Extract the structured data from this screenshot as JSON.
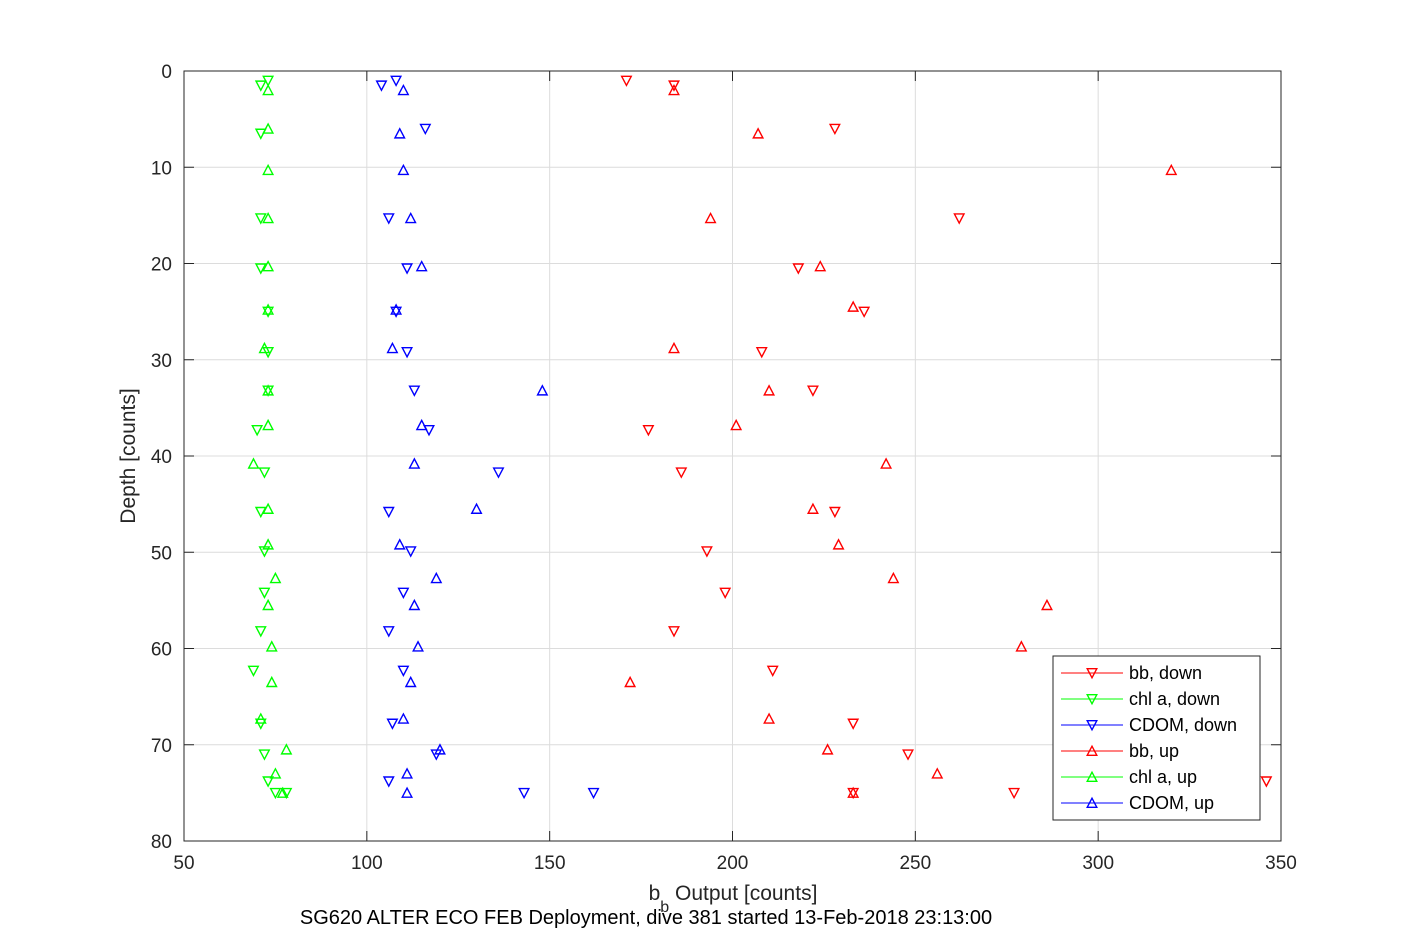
{
  "chart_data": {
    "type": "scatter",
    "title": "",
    "caption": "SG620 ALTER ECO FEB Deployment, dive 381 started 13-Feb-2018 23:13:00",
    "xlabel_main": "b",
    "xlabel_sub": "b",
    "xlabel_rest": " Output [counts]",
    "ylabel": "Depth [counts]",
    "xlim": [
      50,
      350
    ],
    "ylim": [
      0,
      80
    ],
    "y_reversed": true,
    "xticks": [
      50,
      100,
      150,
      200,
      250,
      300,
      350
    ],
    "yticks": [
      0,
      10,
      20,
      30,
      40,
      50,
      60,
      70,
      80
    ],
    "grid": true,
    "legend_position": "bottom-right",
    "series": [
      {
        "name": "bb, down",
        "color": "#ff0000",
        "marker": "triangle-down",
        "points": [
          [
            171,
            1
          ],
          [
            184,
            1.5
          ],
          [
            228,
            6
          ],
          [
            262,
            15.3
          ],
          [
            218,
            20.5
          ],
          [
            236,
            25
          ],
          [
            208,
            29.2
          ],
          [
            222,
            33.2
          ],
          [
            177,
            37.3
          ],
          [
            186,
            41.7
          ],
          [
            228,
            45.8
          ],
          [
            193,
            49.9
          ],
          [
            198,
            54.2
          ],
          [
            184,
            58.2
          ],
          [
            211,
            62.3
          ],
          [
            233,
            67.8
          ],
          [
            248,
            71
          ],
          [
            233,
            75
          ],
          [
            277,
            75
          ],
          [
            346,
            73.8
          ]
        ]
      },
      {
        "name": "chl a, down",
        "color": "#00ff00",
        "marker": "triangle-down",
        "points": [
          [
            73,
            1
          ],
          [
            71,
            1.5
          ],
          [
            71,
            6.5
          ],
          [
            71,
            15.3
          ],
          [
            71,
            20.5
          ],
          [
            73,
            25
          ],
          [
            73,
            29.2
          ],
          [
            73,
            33.2
          ],
          [
            70,
            37.3
          ],
          [
            72,
            41.7
          ],
          [
            71,
            45.8
          ],
          [
            72,
            49.9
          ],
          [
            72,
            54.2
          ],
          [
            71,
            58.2
          ],
          [
            69,
            62.3
          ],
          [
            71,
            67.8
          ],
          [
            72,
            71
          ],
          [
            73,
            73.8
          ],
          [
            75,
            75
          ],
          [
            78,
            75
          ]
        ]
      },
      {
        "name": "CDOM, down",
        "color": "#0000ff",
        "marker": "triangle-down",
        "points": [
          [
            108,
            1
          ],
          [
            104,
            1.5
          ],
          [
            116,
            6
          ],
          [
            106,
            15.3
          ],
          [
            111,
            20.5
          ],
          [
            108,
            25
          ],
          [
            111,
            29.2
          ],
          [
            113,
            33.2
          ],
          [
            117,
            37.3
          ],
          [
            136,
            41.7
          ],
          [
            106,
            45.8
          ],
          [
            112,
            49.9
          ],
          [
            110,
            54.2
          ],
          [
            106,
            58.2
          ],
          [
            110,
            62.3
          ],
          [
            107,
            67.8
          ],
          [
            119,
            71
          ],
          [
            106,
            73.8
          ],
          [
            143,
            75
          ],
          [
            162,
            75
          ]
        ]
      },
      {
        "name": "bb, up",
        "color": "#ff0000",
        "marker": "triangle-up",
        "points": [
          [
            184,
            2
          ],
          [
            207,
            6.5
          ],
          [
            320,
            10.3
          ],
          [
            194,
            15.3
          ],
          [
            224,
            20.3
          ],
          [
            233,
            24.5
          ],
          [
            184,
            28.8
          ],
          [
            210,
            33.2
          ],
          [
            201,
            36.8
          ],
          [
            242,
            40.8
          ],
          [
            222,
            45.5
          ],
          [
            229,
            49.2
          ],
          [
            244,
            52.7
          ],
          [
            286,
            55.5
          ],
          [
            279,
            59.8
          ],
          [
            172,
            63.5
          ],
          [
            210,
            67.3
          ],
          [
            226,
            70.5
          ],
          [
            256,
            73
          ],
          [
            233,
            75
          ]
        ]
      },
      {
        "name": "chl a, up",
        "color": "#00ff00",
        "marker": "triangle-up",
        "points": [
          [
            73,
            2
          ],
          [
            73,
            6
          ],
          [
            73,
            10.3
          ],
          [
            73,
            15.3
          ],
          [
            73,
            20.3
          ],
          [
            73,
            24.8
          ],
          [
            72,
            28.8
          ],
          [
            73,
            33.2
          ],
          [
            73,
            36.8
          ],
          [
            69,
            40.8
          ],
          [
            73,
            45.5
          ],
          [
            73,
            49.2
          ],
          [
            75,
            52.7
          ],
          [
            73,
            55.5
          ],
          [
            74,
            59.8
          ],
          [
            74,
            63.5
          ],
          [
            71,
            67.3
          ],
          [
            78,
            70.5
          ],
          [
            75,
            73
          ],
          [
            77,
            75
          ]
        ]
      },
      {
        "name": "CDOM, up",
        "color": "#0000ff",
        "marker": "triangle-up",
        "points": [
          [
            110,
            2
          ],
          [
            109,
            6.5
          ],
          [
            110,
            10.3
          ],
          [
            112,
            15.3
          ],
          [
            115,
            20.3
          ],
          [
            108,
            24.8
          ],
          [
            107,
            28.8
          ],
          [
            148,
            33.2
          ],
          [
            115,
            36.8
          ],
          [
            113,
            40.8
          ],
          [
            130,
            45.5
          ],
          [
            109,
            49.2
          ],
          [
            119,
            52.7
          ],
          [
            113,
            55.5
          ],
          [
            114,
            59.8
          ],
          [
            112,
            63.5
          ],
          [
            110,
            67.3
          ],
          [
            120,
            70.5
          ],
          [
            111,
            73
          ],
          [
            111,
            75
          ]
        ]
      }
    ]
  }
}
